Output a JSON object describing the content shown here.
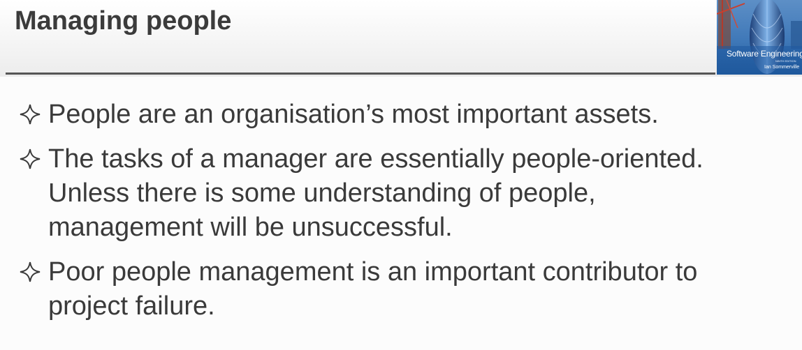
{
  "slide": {
    "title": "Managing people",
    "cover": {
      "title": "Software Engineering",
      "edition": "NINTH EDITION",
      "author": "Ian Sommerville",
      "icon": "book-cover-gherkin-tower"
    },
    "bullet_icon": "four-point-star-outline-icon",
    "bullets": [
      {
        "lines": [
          "People are an organisation’s most important assets."
        ]
      },
      {
        "lines": [
          "The tasks of a manager are essentially people-oriented.",
          "Unless there is some understanding of people,",
          "management will be unsuccessful."
        ]
      },
      {
        "lines": [
          "Poor people management is an important contributor to",
          "project failure."
        ]
      }
    ]
  },
  "colors": {
    "title": "#3b3b3b",
    "text": "#3a3a3a",
    "rule": "#555555",
    "cover_blue": "#2f6fb0"
  }
}
